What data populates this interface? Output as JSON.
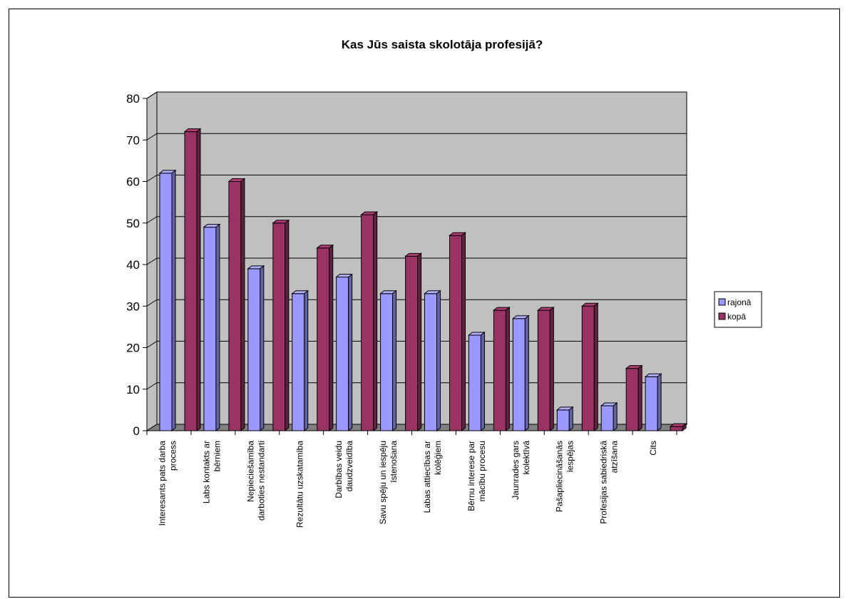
{
  "chart_data": {
    "type": "bar",
    "title": "Kas Jūs saista skolotāja profesijā?",
    "ylim": [
      0,
      80
    ],
    "yticks": [
      0,
      10,
      20,
      30,
      40,
      50,
      60,
      70,
      80
    ],
    "grid": true,
    "legend_position": "right",
    "categories": [
      [
        "Interesants pats darba",
        "process"
      ],
      [
        "Labs kontakts ar",
        "bērniem"
      ],
      [
        "Nepieciešamība",
        "darboties nestandarti"
      ],
      [
        "Rezultātu uzskatamība"
      ],
      [
        "Darbības veidu",
        "daudzveidība"
      ],
      [
        "Savu spēju un iespēju",
        "īstenošana"
      ],
      [
        "Labas attiecības ar",
        "kolēģiem"
      ],
      [
        "Bērnu interese par",
        "mācību procesu"
      ],
      [
        "Jaunrades gars",
        "kolektīvā"
      ],
      [
        "Pašapliecināšanās",
        "iespējas"
      ],
      [
        "Profesijas sabiedriskā",
        "atzīšana"
      ],
      [
        "Cits"
      ]
    ],
    "series": [
      {
        "name": "rajonā",
        "color": "#9999ff",
        "values": [
          62,
          49,
          39,
          33,
          37,
          33,
          33,
          23,
          27,
          5,
          6,
          13
        ]
      },
      {
        "name": "kopā",
        "color": "#993366",
        "values": [
          72,
          60,
          50,
          44,
          52,
          42,
          47,
          29,
          29,
          30,
          15,
          1
        ]
      }
    ],
    "plot_colors": {
      "wall": "#c0c0c0",
      "floor": "#808080",
      "grid": "#000000"
    }
  }
}
